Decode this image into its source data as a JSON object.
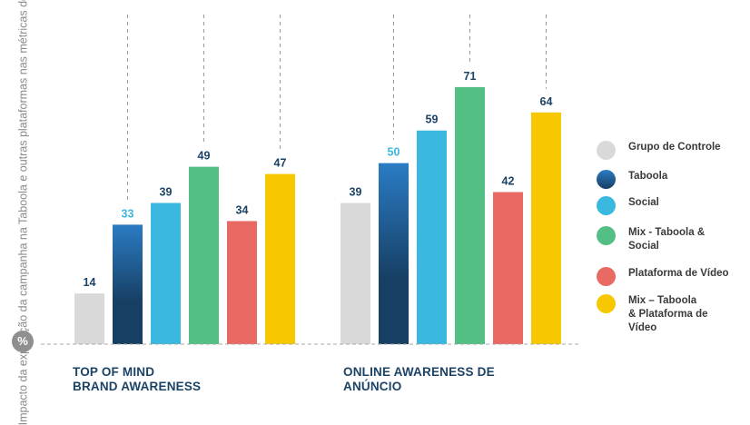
{
  "colors": {
    "controle": "#d9d9d9",
    "taboola_top": "#2a7cc4",
    "taboola_bottom": "#173e63",
    "social": "#3bb8df",
    "mix_social": "#53bf84",
    "video": "#e86a62",
    "mix_video": "#f7c800",
    "label_dark": "#1b4367",
    "label_taboola": "#3bb8df",
    "baseline": "#aaaaaa"
  },
  "y_axis_label": "Impacto da exposição da campanha na Taboola e outras plataformas nas métricas de conscientização",
  "badge_symbol": "%",
  "chart_data": {
    "type": "bar",
    "ylabel": "Impacto da exposição da campanha na Taboola e outras plataformas nas métricas de conscientização",
    "ylim": [
      0,
      80
    ],
    "grid": false,
    "legend_position": "right",
    "categories": [
      "TOP OF MIND\nBRAND AWARENESS",
      "ONLINE AWARENESS DE\nANÚNCIO"
    ],
    "series": [
      {
        "name": "Grupo de Controle",
        "values": [
          14,
          39
        ],
        "color_key": "controle"
      },
      {
        "name": "Taboola",
        "values": [
          33,
          50
        ],
        "color_key": "taboola"
      },
      {
        "name": "Social",
        "values": [
          39,
          59
        ],
        "color_key": "social"
      },
      {
        "name": "Mix - Taboola & Social",
        "values": [
          49,
          71
        ],
        "color_key": "mix_social"
      },
      {
        "name": "Plataforma de Vídeo",
        "values": [
          34,
          42
        ],
        "color_key": "video"
      },
      {
        "name": "Mix – Taboola & Plataforma de Vídeo",
        "values": [
          47,
          64
        ],
        "color_key": "mix_video"
      }
    ]
  },
  "legend": [
    {
      "label": "Grupo de Controle",
      "color_key": "controle"
    },
    {
      "label": "Taboola",
      "color_key": "taboola"
    },
    {
      "label": "Social",
      "color_key": "social"
    },
    {
      "label": "Mix - Taboola &\nSocial",
      "color_key": "mix_social"
    },
    {
      "label": "Plataforma de Vídeo",
      "color_key": "video"
    },
    {
      "label": "Mix – Taboola\n& Plataforma de\nVídeo",
      "color_key": "mix_video"
    }
  ]
}
